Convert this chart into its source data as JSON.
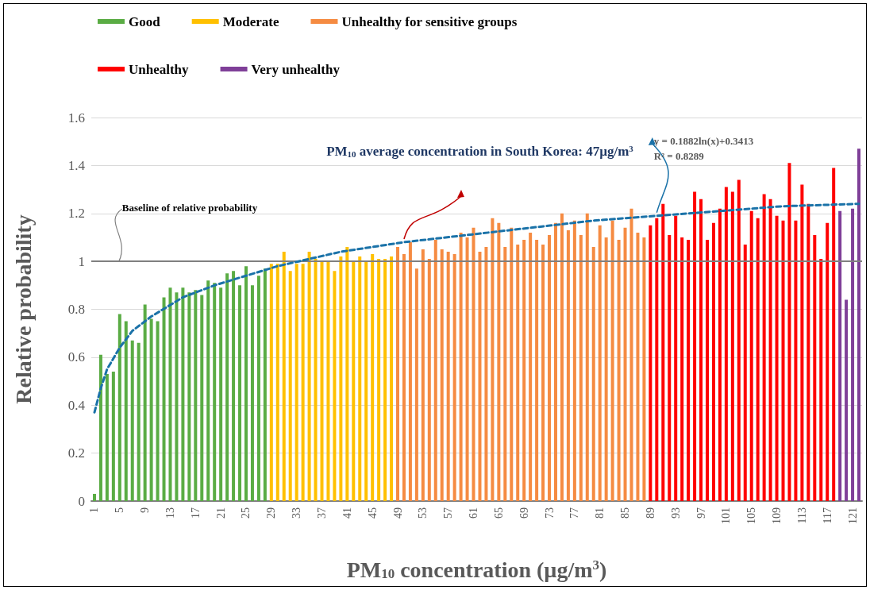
{
  "chart_data": {
    "type": "bar",
    "xlabel": "PM$_{10}$ concentration (µg/m$^{3}$)",
    "ylabel": "Relative probability",
    "categories": [
      "1",
      null,
      null,
      null,
      "5",
      null,
      null,
      null,
      "9",
      null,
      null,
      null,
      "13",
      null,
      null,
      null,
      "17",
      null,
      null,
      null,
      "21",
      null,
      null,
      null,
      "25",
      null,
      null,
      null,
      "29",
      null,
      null,
      null,
      "33",
      null,
      null,
      null,
      "37",
      null,
      null,
      null,
      "41",
      null,
      null,
      null,
      "45",
      null,
      null,
      null,
      "49",
      null,
      null,
      null,
      "53",
      null,
      null,
      null,
      "57",
      null,
      null,
      null,
      "61",
      null,
      null,
      null,
      "65",
      null,
      null,
      null,
      "69",
      null,
      null,
      null,
      "73",
      null,
      null,
      null,
      "77",
      null,
      null,
      null,
      "81",
      null,
      null,
      null,
      "85",
      null,
      null,
      null,
      "89",
      null,
      null,
      null,
      "93",
      null,
      null,
      null,
      "97",
      null,
      null,
      null,
      "101",
      null,
      null,
      null,
      "105",
      null,
      null,
      null,
      "109",
      null,
      null,
      null,
      "113",
      null,
      null,
      null,
      "117",
      null,
      null,
      null,
      "121",
      null
    ],
    "series": [
      {
        "name": "Good",
        "color": "#5aac44",
        "values": [
          0.03,
          0.61,
          0.53,
          0.54,
          0.78,
          0.75,
          0.67,
          0.66,
          0.82,
          0.76,
          0.75,
          0.85,
          0.89,
          0.87,
          0.89,
          0.87,
          0.88,
          0.86,
          0.92,
          0.91,
          0.89,
          0.95,
          0.96,
          0.9,
          0.98,
          0.9,
          0.94,
          0.97,
          null,
          null,
          null,
          null,
          null,
          null,
          null,
          null,
          null,
          null,
          null,
          null,
          null,
          null,
          null,
          null,
          null,
          null,
          null,
          null,
          null,
          null,
          null,
          null,
          null,
          null,
          null,
          null,
          null,
          null,
          null,
          null,
          null,
          null,
          null,
          null,
          null,
          null,
          null,
          null,
          null,
          null,
          null,
          null,
          null,
          null,
          null,
          null,
          null,
          null,
          null,
          null,
          null,
          null,
          null,
          null,
          null,
          null,
          null,
          null,
          null,
          null,
          null,
          null,
          null,
          null,
          null,
          null,
          null,
          null,
          null,
          null,
          null,
          null,
          null,
          null,
          null,
          null,
          null,
          null,
          null,
          null,
          null,
          null,
          null,
          null,
          null,
          null,
          null,
          null,
          null,
          null,
          null,
          null
        ]
      },
      {
        "name": "Moderate",
        "color": "#ffc000",
        "values": [
          null,
          null,
          null,
          null,
          null,
          null,
          null,
          null,
          null,
          null,
          null,
          null,
          null,
          null,
          null,
          null,
          null,
          null,
          null,
          null,
          null,
          null,
          null,
          null,
          null,
          null,
          null,
          null,
          0.99,
          0.99,
          1.04,
          0.96,
          0.99,
          0.99,
          1.04,
          1.01,
          1.0,
          1.0,
          0.96,
          1.02,
          1.06,
          1.0,
          1.02,
          1.0,
          1.03,
          1.01,
          1.01,
          1.02,
          null,
          null,
          null,
          null,
          null,
          null,
          null,
          null,
          null,
          null,
          null,
          null,
          null,
          null,
          null,
          null,
          null,
          null,
          null,
          null,
          null,
          null,
          null,
          null,
          null,
          null,
          null,
          null,
          null,
          null,
          null,
          null,
          null,
          null,
          null,
          null,
          null,
          null,
          null,
          null,
          null,
          null,
          null,
          null,
          null,
          null,
          null,
          null,
          null,
          null,
          null,
          null,
          null,
          null,
          null,
          null,
          null,
          null,
          null,
          null,
          null,
          null,
          null,
          null,
          null,
          null,
          null,
          null,
          null,
          null,
          null,
          null,
          null,
          null
        ]
      },
      {
        "name": "Unhealthy for sensitive groups",
        "color": "#f58b42",
        "values": [
          null,
          null,
          null,
          null,
          null,
          null,
          null,
          null,
          null,
          null,
          null,
          null,
          null,
          null,
          null,
          null,
          null,
          null,
          null,
          null,
          null,
          null,
          null,
          null,
          null,
          null,
          null,
          null,
          null,
          null,
          null,
          null,
          null,
          null,
          null,
          null,
          null,
          null,
          null,
          null,
          null,
          null,
          null,
          null,
          null,
          null,
          null,
          null,
          1.06,
          1.03,
          1.08,
          0.97,
          1.05,
          1.01,
          1.09,
          1.05,
          1.04,
          1.03,
          1.12,
          1.1,
          1.14,
          1.04,
          1.06,
          1.18,
          1.16,
          1.06,
          1.14,
          1.07,
          1.09,
          1.12,
          1.09,
          1.07,
          1.11,
          1.16,
          1.2,
          1.13,
          1.17,
          1.11,
          1.2,
          1.06,
          1.15,
          1.1,
          1.17,
          1.09,
          1.14,
          1.22,
          1.12,
          1.1,
          null,
          null,
          null,
          null,
          null,
          null,
          null,
          null,
          null,
          null,
          null,
          null,
          null,
          null,
          null,
          null,
          null,
          null,
          null,
          null,
          null,
          null,
          null,
          null,
          null,
          null,
          null,
          null,
          null,
          null,
          null,
          null,
          null,
          null
        ]
      },
      {
        "name": "Unhealthy",
        "color": "#ff0000",
        "values": [
          null,
          null,
          null,
          null,
          null,
          null,
          null,
          null,
          null,
          null,
          null,
          null,
          null,
          null,
          null,
          null,
          null,
          null,
          null,
          null,
          null,
          null,
          null,
          null,
          null,
          null,
          null,
          null,
          null,
          null,
          null,
          null,
          null,
          null,
          null,
          null,
          null,
          null,
          null,
          null,
          null,
          null,
          null,
          null,
          null,
          null,
          null,
          null,
          null,
          null,
          null,
          null,
          null,
          null,
          null,
          null,
          null,
          null,
          null,
          null,
          null,
          null,
          null,
          null,
          null,
          null,
          null,
          null,
          null,
          null,
          null,
          null,
          null,
          null,
          null,
          null,
          null,
          null,
          null,
          null,
          null,
          null,
          null,
          null,
          null,
          null,
          null,
          null,
          1.15,
          1.18,
          1.24,
          1.11,
          1.19,
          1.1,
          1.09,
          1.29,
          1.26,
          1.09,
          1.16,
          1.22,
          1.31,
          1.29,
          1.34,
          1.07,
          1.21,
          1.18,
          1.28,
          1.26,
          1.19,
          1.17,
          1.41,
          1.17,
          1.32,
          1.24,
          1.11,
          1.01,
          1.16,
          1.39,
          null,
          null,
          null,
          null
        ]
      },
      {
        "name": "Very unhealthy",
        "color": "#7f3f98",
        "values": [
          null,
          null,
          null,
          null,
          null,
          null,
          null,
          null,
          null,
          null,
          null,
          null,
          null,
          null,
          null,
          null,
          null,
          null,
          null,
          null,
          null,
          null,
          null,
          null,
          null,
          null,
          null,
          null,
          null,
          null,
          null,
          null,
          null,
          null,
          null,
          null,
          null,
          null,
          null,
          null,
          null,
          null,
          null,
          null,
          null,
          null,
          null,
          null,
          null,
          null,
          null,
          null,
          null,
          null,
          null,
          null,
          null,
          null,
          null,
          null,
          null,
          null,
          null,
          null,
          null,
          null,
          null,
          null,
          null,
          null,
          null,
          null,
          null,
          null,
          null,
          null,
          null,
          null,
          null,
          null,
          null,
          null,
          null,
          null,
          null,
          null,
          null,
          null,
          null,
          null,
          null,
          null,
          null,
          null,
          null,
          null,
          null,
          null,
          null,
          null,
          null,
          null,
          null,
          null,
          null,
          null,
          null,
          null,
          null,
          null,
          null,
          null,
          null,
          null,
          null,
          null,
          null,
          null,
          1.21,
          0.84,
          1.22,
          1.47
        ]
      },
      {
        "type": "line",
        "color": "#1a72a8",
        "line_style": "dashed",
        "values": [
          0.37,
          0.47,
          0.55,
          null,
          0.64,
          null,
          0.71,
          null,
          null,
          0.77,
          null,
          null,
          null,
          null,
          0.85,
          null,
          null,
          null,
          null,
          0.9,
          null,
          null,
          null,
          null,
          null,
          null,
          null,
          null,
          null,
          0.98,
          null,
          null,
          null,
          null,
          null,
          null,
          null,
          null,
          null,
          1.04,
          null,
          null,
          null,
          null,
          null,
          null,
          null,
          null,
          null,
          1.08,
          null,
          null,
          null,
          null,
          null,
          null,
          null,
          null,
          null,
          1.11,
          null,
          null,
          null,
          null,
          null,
          null,
          null,
          null,
          null,
          1.14,
          null,
          null,
          null,
          null,
          null,
          null,
          null,
          null,
          null,
          1.17,
          null,
          null,
          null,
          null,
          null,
          null,
          null,
          null,
          null,
          1.19,
          null,
          null,
          null,
          null,
          null,
          null,
          null,
          null,
          null,
          1.21,
          null,
          null,
          null,
          null,
          null,
          null,
          null,
          null,
          null,
          1.23,
          null,
          null,
          null,
          null,
          null,
          null,
          null,
          null,
          null,
          null,
          null,
          1.24
        ]
      }
    ],
    "ylim": [
      0,
      1.6
    ],
    "yticks": [
      0,
      0.2,
      0.4,
      0.6,
      0.8,
      1,
      1.2,
      1.4,
      1.6
    ],
    "grid": "y",
    "legend": "top left",
    "ref_lines": [
      {
        "axis": "y",
        "value": 1,
        "label": "Baseline of relative probability",
        "color": "#808080"
      }
    ],
    "annotations": [
      "PM$_{10}$ average concentration in South Korea: 47µg/m$^{3}$",
      "y = 0.1882ln(x)+0.3413",
      "R² = 0.8289"
    ]
  }
}
